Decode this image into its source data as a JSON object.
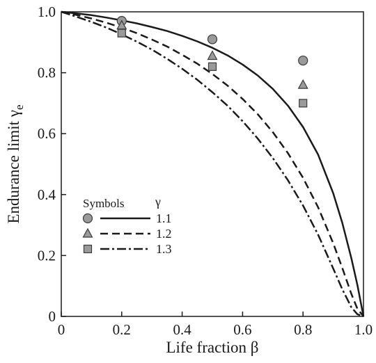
{
  "chart_data": {
    "type": "line",
    "xlabel": "Life fraction β",
    "ylabel_main": "Endurance limit γ",
    "ylabel_sub": "e",
    "xlim": [
      0,
      1
    ],
    "ylim": [
      0,
      1
    ],
    "x_ticks": [
      0,
      0.2,
      0.4,
      0.6,
      0.8,
      1.0
    ],
    "x_tick_labels": [
      "0",
      "0.2",
      "0.4",
      "0.6",
      "0.8",
      "1.0"
    ],
    "y_ticks": [
      0,
      0.2,
      0.4,
      0.6,
      0.8,
      1.0
    ],
    "y_tick_labels": [
      "0",
      "0.2",
      "0.4",
      "0.6",
      "0.8",
      "1.0"
    ],
    "legend": {
      "header_symbols": "Symbols",
      "header_gamma": "γ",
      "position": "lower-left"
    },
    "series": [
      {
        "name": "1.1",
        "line_style": "solid",
        "marker": "circle",
        "curve_x": [
          0,
          0.05,
          0.1,
          0.15,
          0.2,
          0.25,
          0.3,
          0.35,
          0.4,
          0.45,
          0.5,
          0.55,
          0.6,
          0.65,
          0.7,
          0.75,
          0.8,
          0.85,
          0.9,
          0.93,
          0.96,
          0.98,
          1.0
        ],
        "curve_y": [
          1.0,
          0.995,
          0.989,
          0.981,
          0.972,
          0.962,
          0.95,
          0.937,
          0.921,
          0.903,
          0.882,
          0.857,
          0.827,
          0.791,
          0.747,
          0.692,
          0.622,
          0.531,
          0.404,
          0.307,
          0.191,
          0.103,
          0.0
        ],
        "points_x": [
          0.2,
          0.5,
          0.8
        ],
        "points_y": [
          0.97,
          0.91,
          0.84
        ]
      },
      {
        "name": "1.2",
        "line_style": "dashed",
        "marker": "triangle",
        "curve_x": [
          0,
          0.05,
          0.1,
          0.15,
          0.2,
          0.25,
          0.3,
          0.35,
          0.4,
          0.45,
          0.5,
          0.55,
          0.6,
          0.65,
          0.7,
          0.75,
          0.8,
          0.85,
          0.9,
          0.93,
          0.96,
          0.98,
          1.0
        ],
        "curve_y": [
          1.0,
          0.99,
          0.978,
          0.964,
          0.948,
          0.93,
          0.909,
          0.886,
          0.859,
          0.83,
          0.796,
          0.758,
          0.714,
          0.664,
          0.605,
          0.536,
          0.455,
          0.358,
          0.24,
          0.159,
          0.074,
          0.025,
          0.0
        ],
        "points_x": [
          0.2,
          0.5,
          0.8
        ],
        "points_y": [
          0.955,
          0.855,
          0.76
        ]
      },
      {
        "name": "1.3",
        "line_style": "dash-dot",
        "marker": "square",
        "curve_x": [
          0,
          0.05,
          0.1,
          0.15,
          0.2,
          0.25,
          0.3,
          0.35,
          0.4,
          0.45,
          0.5,
          0.55,
          0.6,
          0.65,
          0.7,
          0.75,
          0.8,
          0.85,
          0.9,
          0.93,
          0.96,
          0.98,
          1.0
        ],
        "curve_y": [
          1.0,
          0.984,
          0.967,
          0.948,
          0.926,
          0.902,
          0.876,
          0.846,
          0.813,
          0.777,
          0.736,
          0.692,
          0.641,
          0.584,
          0.52,
          0.447,
          0.364,
          0.268,
          0.157,
          0.089,
          0.03,
          0.007,
          0.0
        ],
        "points_x": [
          0.2,
          0.5,
          0.8
        ],
        "points_y": [
          0.93,
          0.82,
          0.7
        ]
      }
    ],
    "colors": {
      "line": "#1a1a1a",
      "marker_fill": "#9a9a9a",
      "marker_stroke": "#3a3a3a"
    }
  }
}
